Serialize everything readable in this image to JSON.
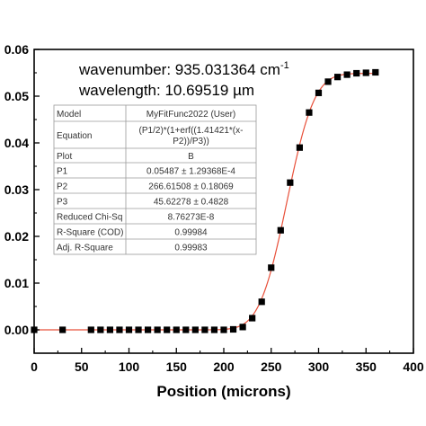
{
  "chart_data": {
    "type": "scatter",
    "title": "",
    "xlabel": "Position (microns)",
    "ylabel": "",
    "xlim": [
      0,
      400
    ],
    "ylim": [
      -0.005,
      0.06
    ],
    "x_ticks": [
      "0",
      "50",
      "100",
      "150",
      "200",
      "250",
      "300",
      "350",
      "400"
    ],
    "y_ticks": [
      "0.00",
      "0.01",
      "0.02",
      "0.03",
      "0.04",
      "0.05",
      "0.06"
    ],
    "grid": false,
    "marker_color": "#000000",
    "fit_color": "#e8503a",
    "series": [
      {
        "x": [
          0,
          30,
          60,
          70,
          80,
          90,
          100,
          110,
          120,
          130,
          140,
          150,
          160,
          170,
          180,
          190,
          200,
          210,
          220,
          230,
          240,
          250,
          260,
          270,
          280,
          290,
          300,
          310,
          320,
          330,
          340,
          350,
          360
        ],
        "y": [
          0.0,
          0.0,
          0.0,
          0.0,
          0.0,
          0.0,
          0.0,
          0.0,
          0.0,
          0.0,
          0.0,
          0.0,
          0.0,
          0.0,
          0.0,
          0.0,
          0.0,
          0.0001,
          0.0006,
          0.0025,
          0.006,
          0.0133,
          0.0213,
          0.0315,
          0.039,
          0.0465,
          0.0507,
          0.0531,
          0.0541,
          0.0546,
          0.0549,
          0.055,
          0.0551
        ]
      }
    ],
    "fit": {
      "P1": 0.05487,
      "P2": 266.61508,
      "P3": 45.62278
    },
    "annotations": {
      "wavenumber_label": "wavenumber: 935.031364 cm",
      "wavenumber_sup": "-1",
      "wavelength_label": "wavelength: 10.69519 µm"
    },
    "fit_table": [
      [
        "Model",
        "MyFitFunc2022 (User)"
      ],
      [
        "Equation",
        "(P1/2)*(1+erf((1.41421*(x-\nP2))/P3))"
      ],
      [
        "Plot",
        "B"
      ],
      [
        "P1",
        "0.05487 ± 1.29368E-4"
      ],
      [
        "P2",
        "266.61508 ± 0.18069"
      ],
      [
        "P3",
        "45.62278 ± 0.4828"
      ],
      [
        "Reduced Chi-Sq",
        "8.76273E-8"
      ],
      [
        "R-Square (COD)",
        "0.99984"
      ],
      [
        "Adj. R-Square",
        "0.99983"
      ]
    ]
  }
}
